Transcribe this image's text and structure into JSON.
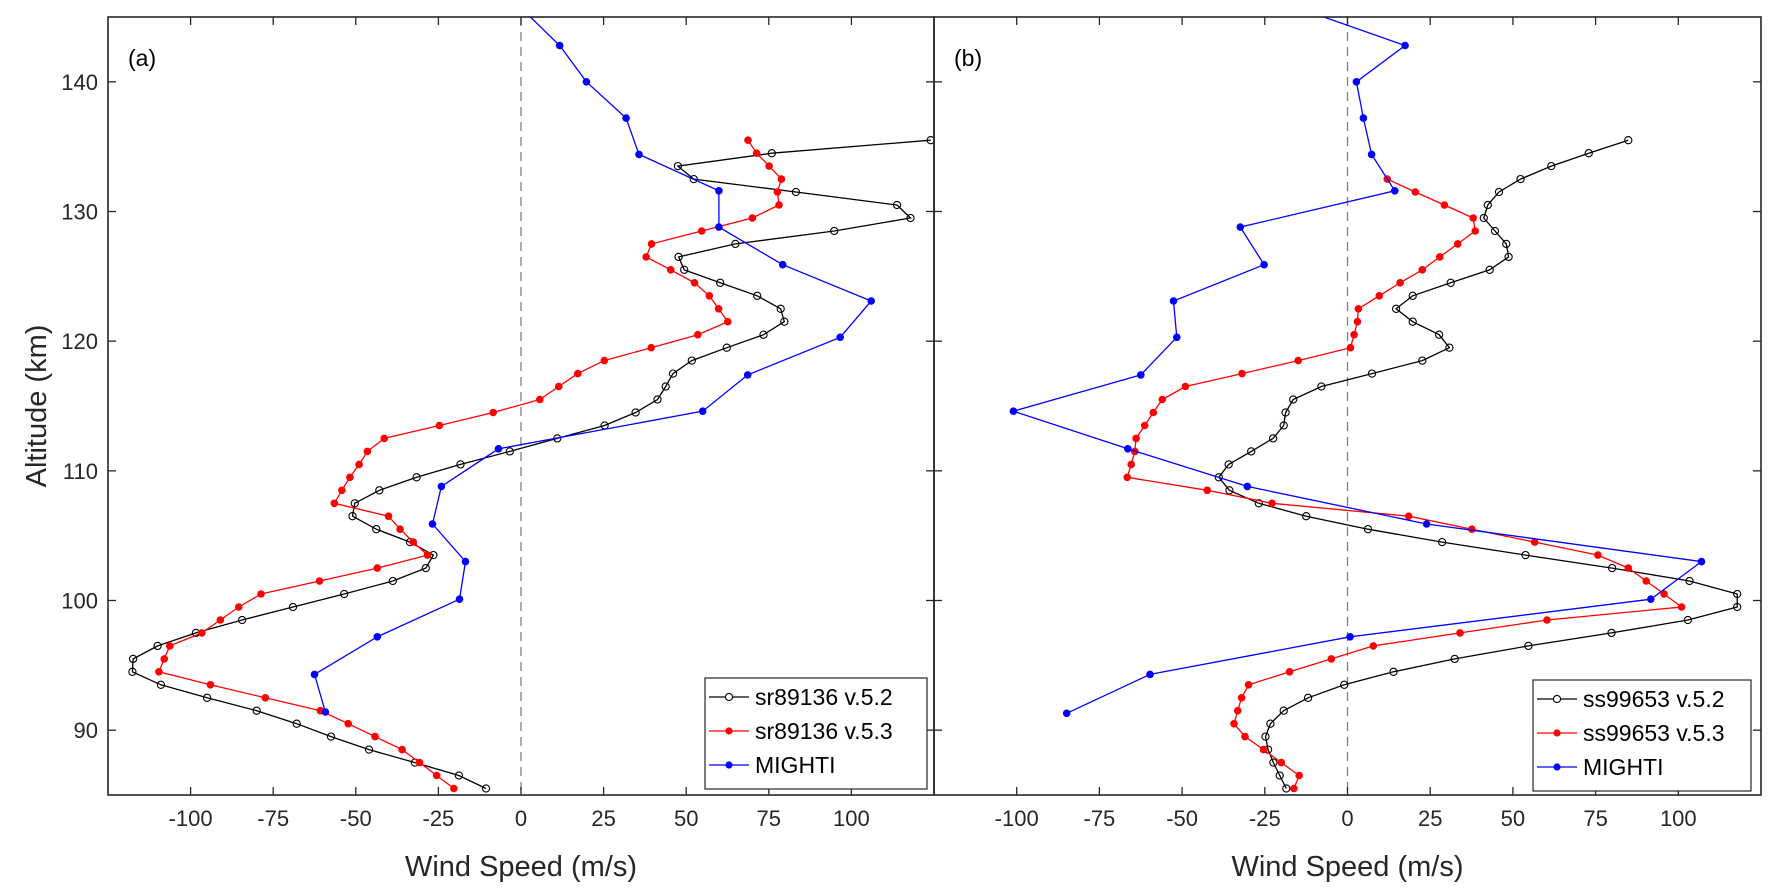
{
  "chart_data": [
    {
      "type": "line",
      "panel_label": "(a)",
      "xlabel": "Wind Speed (m/s)",
      "ylabel": "Altitude (km)",
      "xlim": [
        -125,
        125
      ],
      "ylim": [
        85,
        145
      ],
      "xticks": [
        -100,
        -75,
        -50,
        -25,
        0,
        25,
        50,
        75,
        100
      ],
      "yticks": [
        90,
        100,
        110,
        120,
        130,
        140
      ],
      "grid": false,
      "zero_line": "dashed",
      "legend_position": "bottom-right",
      "series": [
        {
          "name": "sr89136 v.5.2",
          "color": "#000000",
          "marker": "open-circle",
          "points_alt_speed": [
            [
              85.5,
              -10.6
            ],
            [
              86.5,
              -18.8
            ],
            [
              87.5,
              -32.1
            ],
            [
              88.5,
              -46
            ],
            [
              89.5,
              -57.5
            ],
            [
              90.5,
              -67.9
            ],
            [
              91.5,
              -80
            ],
            [
              92.5,
              -95
            ],
            [
              93.5,
              -109
            ],
            [
              94.5,
              -117.6
            ],
            [
              95.5,
              -117.4
            ],
            [
              96.5,
              -110
            ],
            [
              97.5,
              -98.4
            ],
            [
              98.5,
              -84.4
            ],
            [
              99.5,
              -69
            ],
            [
              100.5,
              -53.5
            ],
            [
              101.5,
              -38.8
            ],
            [
              102.5,
              -28.8
            ],
            [
              103.5,
              -26.5
            ],
            [
              104.5,
              -33.6
            ],
            [
              105.5,
              -43.8
            ],
            [
              106.5,
              -51
            ],
            [
              107.5,
              -50.3
            ],
            [
              108.5,
              -42.9
            ],
            [
              109.5,
              -31.6
            ],
            [
              110.5,
              -18.3
            ],
            [
              111.5,
              -3.4
            ],
            [
              112.5,
              11
            ],
            [
              113.5,
              25.3
            ],
            [
              114.5,
              34.7
            ],
            [
              115.5,
              41.3
            ],
            [
              116.5,
              43.8
            ],
            [
              117.5,
              46
            ],
            [
              118.5,
              51.7
            ],
            [
              119.5,
              62.3
            ],
            [
              120.5,
              73.4
            ],
            [
              121.5,
              79.7
            ],
            [
              122.5,
              78.6
            ],
            [
              123.5,
              71.5
            ],
            [
              124.5,
              60.3
            ],
            [
              125.5,
              49.4
            ],
            [
              126.5,
              47.7
            ],
            [
              127.5,
              64.9
            ],
            [
              128.5,
              94.8
            ],
            [
              129.5,
              117.9
            ],
            [
              130.5,
              113.8
            ],
            [
              131.5,
              83.2
            ],
            [
              132.5,
              52.3
            ],
            [
              133.5,
              47.5
            ],
            [
              134.5,
              75.9
            ],
            [
              135.5,
              124
            ]
          ]
        },
        {
          "name": "sr89136 v.5.3",
          "color": "#ff0000",
          "marker": "filled-circle",
          "points_alt_speed": [
            [
              85.5,
              -20.3
            ],
            [
              86.5,
              -25.5
            ],
            [
              87.5,
              -30.7
            ],
            [
              88.5,
              -36
            ],
            [
              89.5,
              -44.2
            ],
            [
              90.5,
              -52.3
            ],
            [
              91.5,
              -60.7
            ],
            [
              92.5,
              -77.4
            ],
            [
              93.5,
              -94
            ],
            [
              94.5,
              -109.6
            ],
            [
              95.5,
              -108
            ],
            [
              96.5,
              -106.3
            ],
            [
              97.5,
              -96.6
            ],
            [
              98.5,
              -91
            ],
            [
              99.5,
              -85.4
            ],
            [
              100.5,
              -78.7
            ],
            [
              101.5,
              -61
            ],
            [
              102.5,
              -43.5
            ],
            [
              103.5,
              -28.3
            ],
            [
              104.5,
              -32.6
            ],
            [
              105.5,
              -36.6
            ],
            [
              106.5,
              -40.1
            ],
            [
              107.5,
              -56.5
            ],
            [
              108.5,
              -54.2
            ],
            [
              109.5,
              -51.8
            ],
            [
              110.5,
              -49
            ],
            [
              111.5,
              -46.5
            ],
            [
              112.5,
              -41.4
            ],
            [
              113.5,
              -24.7
            ],
            [
              114.5,
              -8.4
            ],
            [
              115.5,
              5.7
            ],
            [
              116.5,
              11.4
            ],
            [
              117.5,
              17.2
            ],
            [
              118.5,
              25.2
            ],
            [
              119.5,
              39.4
            ],
            [
              120.5,
              53.5
            ],
            [
              121.5,
              62.6
            ],
            [
              122.5,
              59.8
            ],
            [
              123.5,
              57
            ],
            [
              124.5,
              52.5
            ],
            [
              125.5,
              45.3
            ],
            [
              126.5,
              37.9
            ],
            [
              127.5,
              39.5
            ],
            [
              128.5,
              54.7
            ],
            [
              129.5,
              70
            ],
            [
              130.5,
              78.1
            ],
            [
              131.5,
              77.6
            ],
            [
              132.5,
              78.8
            ],
            [
              133.5,
              75.1
            ],
            [
              134.5,
              71.3
            ],
            [
              135.5,
              68.7
            ]
          ]
        },
        {
          "name": "MIGHTI",
          "color": "#0000ff",
          "marker": "filled-circle",
          "points_alt_speed": [
            [
              91.4,
              -59.2
            ],
            [
              94.3,
              -62.5
            ],
            [
              97.2,
              -43.5
            ],
            [
              100.1,
              -18.6
            ],
            [
              103.0,
              -16.8
            ],
            [
              105.9,
              -26.8
            ],
            [
              108.8,
              -24.1
            ],
            [
              111.7,
              -6.8
            ],
            [
              114.6,
              55
            ],
            [
              117.4,
              68.6
            ],
            [
              120.3,
              96.6
            ],
            [
              123.1,
              106
            ],
            [
              125.9,
              79.2
            ],
            [
              128.8,
              59.9
            ],
            [
              131.6,
              59.9
            ],
            [
              134.4,
              35.7
            ],
            [
              137.2,
              31.8
            ],
            [
              140.0,
              19.8
            ],
            [
              142.8,
              11.7
            ],
            [
              145.7,
              0
            ]
          ]
        }
      ]
    },
    {
      "type": "line",
      "panel_label": "(b)",
      "xlabel": "Wind Speed (m/s)",
      "xlim": [
        -125,
        125
      ],
      "ylim": [
        85,
        145
      ],
      "xticks": [
        -100,
        -75,
        -50,
        -25,
        0,
        25,
        50,
        75,
        100
      ],
      "grid": false,
      "zero_line": "dashed",
      "legend_position": "bottom-right",
      "series": [
        {
          "name": "ss99653 v.5.2",
          "color": "#000000",
          "marker": "open-circle",
          "points_alt_speed": [
            [
              85.5,
              -18.5
            ],
            [
              86.5,
              -20.5
            ],
            [
              87.5,
              -22.4
            ],
            [
              88.5,
              -24
            ],
            [
              89.5,
              -24.8
            ],
            [
              90.5,
              -23.3
            ],
            [
              91.5,
              -19.3
            ],
            [
              92.5,
              -11.9
            ],
            [
              93.5,
              -1
            ],
            [
              94.5,
              13.9
            ],
            [
              95.5,
              32.4
            ],
            [
              96.5,
              54.7
            ],
            [
              97.5,
              79.8
            ],
            [
              98.5,
              102.9
            ],
            [
              99.5,
              117.8
            ],
            [
              100.5,
              117.8
            ],
            [
              101.5,
              103.4
            ],
            [
              102.5,
              80
            ],
            [
              103.5,
              53.8
            ],
            [
              104.5,
              28.6
            ],
            [
              105.5,
              6.2
            ],
            [
              106.5,
              -12.5
            ],
            [
              107.5,
              -26.8
            ],
            [
              108.5,
              -35.7
            ],
            [
              109.5,
              -38.9
            ],
            [
              110.5,
              -35.9
            ],
            [
              111.5,
              -29.1
            ],
            [
              112.5,
              -22.5
            ],
            [
              113.5,
              -19.3
            ],
            [
              114.5,
              -18.7
            ],
            [
              115.5,
              -16.4
            ],
            [
              116.5,
              -7.9
            ],
            [
              117.5,
              7.4
            ],
            [
              118.5,
              22.6
            ],
            [
              119.5,
              30.8
            ],
            [
              120.5,
              27.7
            ],
            [
              121.5,
              19.7
            ],
            [
              122.5,
              14.7
            ],
            [
              123.5,
              19.7
            ],
            [
              124.5,
              31.2
            ],
            [
              125.5,
              43
            ],
            [
              126.5,
              48.7
            ],
            [
              127.5,
              48
            ],
            [
              128.5,
              44.6
            ],
            [
              129.5,
              41.2
            ],
            [
              130.5,
              42.4
            ],
            [
              131.5,
              45.8
            ],
            [
              132.5,
              52.3
            ],
            [
              133.5,
              61.6
            ],
            [
              134.5,
              72.9
            ],
            [
              135.5,
              84.9
            ]
          ]
        },
        {
          "name": "ss99653 v.5.3",
          "color": "#ff0000",
          "marker": "filled-circle",
          "points_alt_speed": [
            [
              85.5,
              -16.2
            ],
            [
              86.5,
              -14.6
            ],
            [
              87.5,
              -20
            ],
            [
              88.5,
              -25.4
            ],
            [
              89.5,
              -31
            ],
            [
              90.5,
              -34.3
            ],
            [
              91.5,
              -33.2
            ],
            [
              92.5,
              -32
            ],
            [
              93.5,
              -29.9
            ],
            [
              94.5,
              -17.5
            ],
            [
              95.5,
              -4.9
            ],
            [
              96.5,
              7.8
            ],
            [
              97.5,
              34
            ],
            [
              98.5,
              60.3
            ],
            [
              99.5,
              101
            ],
            [
              100.5,
              95.7
            ],
            [
              101.5,
              90.3
            ],
            [
              102.5,
              84.9
            ],
            [
              103.5,
              75.7
            ],
            [
              104.5,
              56.6
            ],
            [
              105.5,
              37.6
            ],
            [
              106.5,
              18.5
            ],
            [
              107.5,
              -22.8
            ],
            [
              108.5,
              -42.4
            ],
            [
              109.5,
              -66.6
            ],
            [
              110.5,
              -65.4
            ],
            [
              111.5,
              -64.3
            ],
            [
              112.5,
              -63.9
            ],
            [
              113.5,
              -61.3
            ],
            [
              114.5,
              -58.7
            ],
            [
              115.5,
              -56
            ],
            [
              116.5,
              -49
            ],
            [
              117.5,
              -31.9
            ],
            [
              118.5,
              -14.9
            ],
            [
              119.5,
              0.9
            ],
            [
              120.5,
              2
            ],
            [
              121.5,
              3
            ],
            [
              122.5,
              3.3
            ],
            [
              123.5,
              9.6
            ],
            [
              124.5,
              15.9
            ],
            [
              125.5,
              22.6
            ],
            [
              126.5,
              27.9
            ],
            [
              127.5,
              33.3
            ],
            [
              128.5,
              38.6
            ],
            [
              129.5,
              38
            ],
            [
              130.5,
              29.3
            ],
            [
              131.5,
              20.5
            ],
            [
              132.5,
              12
            ]
          ]
        },
        {
          "name": "MIGHTI",
          "color": "#0000ff",
          "marker": "filled-circle",
          "points_alt_speed": [
            [
              91.3,
              -84.9
            ],
            [
              94.3,
              -59.7
            ],
            [
              97.2,
              0.8
            ],
            [
              100.1,
              91.7
            ],
            [
              103.0,
              107
            ],
            [
              105.9,
              23.9
            ],
            [
              108.8,
              -30.3
            ],
            [
              111.7,
              -66.4
            ],
            [
              114.6,
              -101
            ],
            [
              117.4,
              -62.5
            ],
            [
              120.3,
              -51.6
            ],
            [
              123.1,
              -52.6
            ],
            [
              125.9,
              -25.2
            ],
            [
              128.8,
              -32.4
            ],
            [
              131.6,
              14.3
            ],
            [
              134.4,
              7.3
            ],
            [
              137.2,
              4.8
            ],
            [
              140.0,
              2.7
            ],
            [
              142.8,
              17.4
            ],
            [
              145.7,
              -15
            ]
          ]
        }
      ]
    }
  ]
}
